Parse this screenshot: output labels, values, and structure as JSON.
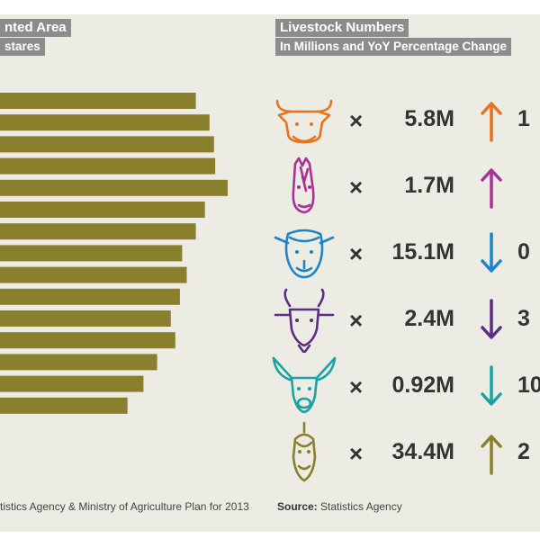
{
  "left_panel": {
    "title_line1": "nted Area",
    "title_line2": "stares",
    "source_text": "tistics Agency & Ministry of Agriculture Plan for 2013"
  },
  "chart_data": {
    "type": "bar",
    "orientation": "horizontal",
    "bar_color": "#8a7f2c",
    "values_relative": [
      0.86,
      0.92,
      0.94,
      0.945,
      1.0,
      0.9,
      0.86,
      0.8,
      0.82,
      0.79,
      0.75,
      0.77,
      0.69,
      0.63,
      0.56
    ],
    "note_values_scale": "relative lengths, axis not shown"
  },
  "right_panel": {
    "title_line1": "Livestock Numbers",
    "title_line2": "In Millions and YoY Percentage Change",
    "source_label": "Source:",
    "source_text": " Statistics Agency",
    "rows": [
      {
        "animal": "cow-icon",
        "multiplier": "×",
        "count": "5.8M",
        "direction": "up",
        "color": "#e8731e",
        "pct": "1"
      },
      {
        "animal": "horse-icon",
        "multiplier": "×",
        "count": "1.7M",
        "direction": "up",
        "color": "#a63395",
        "pct": ""
      },
      {
        "animal": "sheep-icon",
        "multiplier": "×",
        "count": "15.1M",
        "direction": "down",
        "color": "#1d84c7",
        "pct": "0"
      },
      {
        "animal": "goat-icon",
        "multiplier": "×",
        "count": "2.4M",
        "direction": "down",
        "color": "#5a2d82",
        "pct": "3"
      },
      {
        "animal": "deer-icon",
        "multiplier": "×",
        "count": "0.92M",
        "direction": "down",
        "color": "#1aa3a3",
        "pct": "10"
      },
      {
        "animal": "camel-icon",
        "multiplier": "×",
        "count": "34.4M",
        "direction": "up",
        "color": "#8a7f2c",
        "pct": "2"
      }
    ]
  }
}
